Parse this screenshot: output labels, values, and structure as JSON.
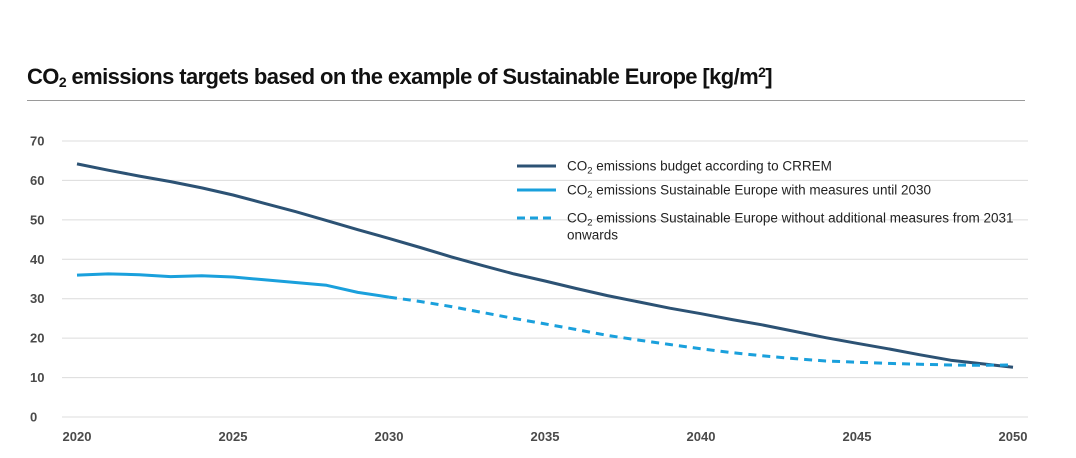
{
  "title": {
    "prefix": "CO",
    "sub": "2",
    "main": " emissions targets based on the example of Sustainable Europe [kg/m",
    "sup": "2",
    "suffix": "]"
  },
  "chart_data": {
    "type": "line",
    "xlim": [
      2020,
      2050
    ],
    "ylim": [
      0,
      70
    ],
    "x_ticks": [
      "2020",
      "2025",
      "2030",
      "2035",
      "2040",
      "2045",
      "2050"
    ],
    "y_ticks": [
      "0",
      "10",
      "20",
      "30",
      "40",
      "50",
      "60",
      "70"
    ],
    "grid": true,
    "legend_position": "top-right",
    "series": [
      {
        "name_pre": "CO",
        "name_sub": "2",
        "name_lines": [
          " emissions budget according to CRREM"
        ],
        "color": "#2c5274",
        "style": "solid",
        "x": [
          2020,
          2021,
          2022,
          2023,
          2024,
          2025,
          2026,
          2027,
          2028,
          2029,
          2030,
          2031,
          2032,
          2033,
          2034,
          2035,
          2036,
          2037,
          2038,
          2039,
          2040,
          2041,
          2042,
          2043,
          2044,
          2045,
          2046,
          2047,
          2048,
          2049,
          2050
        ],
        "y": [
          64.2,
          62.6,
          61.1,
          59.7,
          58.1,
          56.3,
          54.2,
          52.1,
          49.8,
          47.5,
          45.3,
          43.0,
          40.6,
          38.4,
          36.3,
          34.5,
          32.6,
          30.8,
          29.2,
          27.6,
          26.2,
          24.7,
          23.3,
          21.7,
          20.1,
          18.7,
          17.3,
          15.8,
          14.4,
          13.5,
          12.6
        ]
      },
      {
        "name_pre": "CO",
        "name_sub": "2",
        "name_lines": [
          " emissions Sustainable Europe with measures until 2030"
        ],
        "color": "#1aa0dc",
        "style": "solid",
        "x": [
          2020,
          2021,
          2022,
          2023,
          2024,
          2025,
          2026,
          2027,
          2028,
          2029,
          2030
        ],
        "y": [
          36.0,
          36.3,
          36.1,
          35.6,
          35.8,
          35.5,
          34.8,
          34.1,
          33.4,
          31.6,
          30.4
        ]
      },
      {
        "name_pre": "CO",
        "name_sub": "2",
        "name_lines": [
          " emissions Sustainable Europe without additional measures from 2031",
          "onwards"
        ],
        "color": "#1aa0dc",
        "style": "dashed",
        "x": [
          2030,
          2031,
          2032,
          2033,
          2034,
          2035,
          2036,
          2037,
          2038,
          2039,
          2040,
          2041,
          2042,
          2043,
          2044,
          2045,
          2046,
          2047,
          2048,
          2049,
          2050
        ],
        "y": [
          30.4,
          29.3,
          28.0,
          26.5,
          25.0,
          23.6,
          22.2,
          20.7,
          19.5,
          18.4,
          17.3,
          16.3,
          15.5,
          14.8,
          14.2,
          13.9,
          13.6,
          13.4,
          13.2,
          13.1,
          13.2
        ]
      }
    ]
  }
}
